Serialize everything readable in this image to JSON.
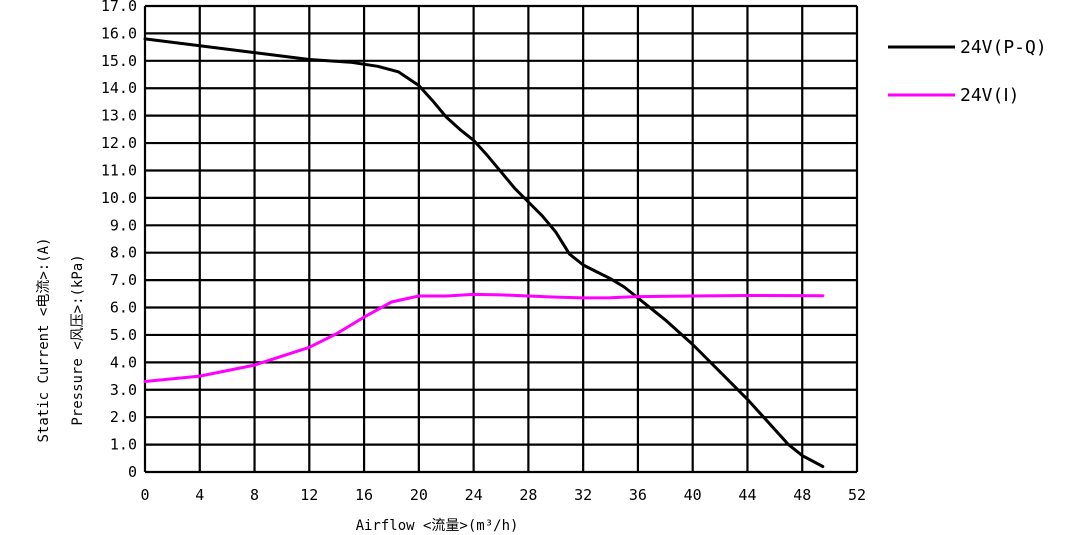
{
  "chart_data": {
    "type": "line",
    "xlabel": "Airflow <流量>(m³/h)",
    "ylabel_outer": "Static Current <电流>:(A)",
    "ylabel_inner": "Pressure <风压>:(kPa)",
    "xlim": [
      0,
      52
    ],
    "ylim": [
      0,
      17
    ],
    "x_ticks": [
      "0",
      "4",
      "8",
      "12",
      "16",
      "20",
      "24",
      "28",
      "32",
      "36",
      "40",
      "44",
      "48",
      "52"
    ],
    "y_ticks": [
      "0",
      "1.0",
      "2.0",
      "3.0",
      "4.0",
      "5.0",
      "6.0",
      "7.0",
      "8.0",
      "9.0",
      "10.0",
      "11.0",
      "12.0",
      "13.0",
      "14.0",
      "15.0",
      "16.0",
      "17.0"
    ],
    "grid": true,
    "legend_position": "right",
    "series": [
      {
        "name": "24V(P-Q)",
        "color": "#000000",
        "x": [
          0,
          4,
          8,
          12,
          15,
          17,
          18.5,
          20,
          21,
          22,
          23,
          24,
          25,
          26,
          27,
          28,
          29,
          30,
          31,
          32,
          33,
          34,
          35,
          36,
          37,
          38,
          40,
          42,
          44,
          46,
          47,
          48,
          49.5
        ],
        "y": [
          15.8,
          15.55,
          15.3,
          15.05,
          14.95,
          14.8,
          14.6,
          14.1,
          13.55,
          12.95,
          12.5,
          12.1,
          11.55,
          10.95,
          10.35,
          9.85,
          9.35,
          8.75,
          7.95,
          7.55,
          7.3,
          7.05,
          6.75,
          6.35,
          5.95,
          5.55,
          4.65,
          3.65,
          2.65,
          1.55,
          1.0,
          0.6,
          0.2
        ]
      },
      {
        "name": "24V(Ⅰ)",
        "color": "#ff00ff",
        "x": [
          0,
          4,
          8,
          12,
          14,
          16,
          18,
          20,
          22,
          24,
          26,
          28,
          30,
          32,
          34,
          36,
          40,
          44,
          49.5
        ],
        "y": [
          3.3,
          3.5,
          3.9,
          4.55,
          5.05,
          5.65,
          6.2,
          6.42,
          6.42,
          6.48,
          6.46,
          6.42,
          6.38,
          6.35,
          6.36,
          6.4,
          6.42,
          6.44,
          6.43
        ]
      }
    ],
    "legend_labels": [
      "24V(P-Q)",
      "24V(Ⅰ)"
    ]
  },
  "axis_titles": {
    "x": "Airflow <流量>(m³/h)",
    "y_outer": "Static Current <电流>:(A)",
    "y_inner": "Pressure <风压>:(kPa)"
  }
}
